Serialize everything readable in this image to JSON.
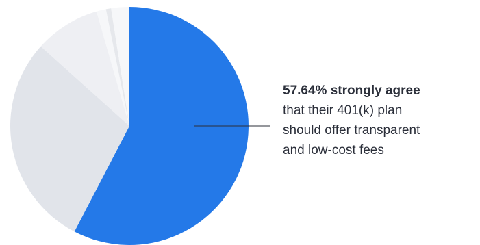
{
  "chart_data": {
    "type": "pie",
    "title": "",
    "start_angle_deg": 0,
    "direction": "clockwise",
    "slices": [
      {
        "value": 57.64,
        "color": "#2479e8"
      },
      {
        "value": 29.0,
        "color": "#e1e4ea"
      },
      {
        "value": 8.9,
        "color": "#eeeff3"
      },
      {
        "value": 1.3,
        "color": "#f6f7f9"
      },
      {
        "value": 0.7,
        "color": "#e6e8ec"
      },
      {
        "value": 2.46,
        "color": "#f6f7f9"
      }
    ]
  },
  "callout": {
    "headline": "57.64% strongly agree",
    "text": "that their 401(k) plan\nshould offer transparent\nand low-cost fees"
  }
}
